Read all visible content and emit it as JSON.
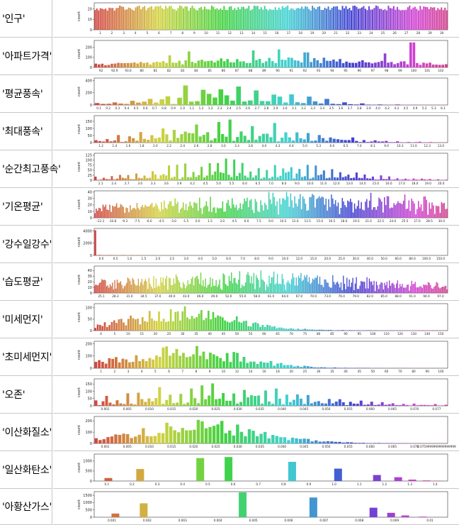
{
  "charts": [
    {
      "label": "'인구'",
      "chart_data": {
        "type": "bar",
        "ylabel": "count",
        "yticks": [
          "0",
          "10",
          "20"
        ],
        "ymax": 26,
        "xticklabels": [
          "1",
          "2",
          "3",
          "4",
          "5",
          "6",
          "7",
          "8",
          "9",
          "10",
          "11",
          "12",
          "13",
          "14",
          "15",
          "16",
          "17",
          "18",
          "19",
          "20",
          "21",
          "22",
          "23",
          "24",
          "25",
          "26",
          "27",
          "28",
          "29",
          "30"
        ],
        "pattern": "uniform",
        "nbars": 200,
        "base": 20,
        "jitter": 5
      }
    },
    {
      "label": "'아파트가격'",
      "chart_data": {
        "type": "bar",
        "ylabel": "count",
        "yticks": [
          "0",
          "100",
          "200"
        ],
        "ymax": 270,
        "xticklabels": [
          "92",
          "92.9",
          "93.6",
          "80",
          "81",
          "82",
          "83",
          "84",
          "85",
          "86",
          "87",
          "88",
          "89",
          "90",
          "91",
          "92",
          "93",
          "94",
          "95",
          "96",
          "97",
          "98",
          "99",
          "100",
          "101",
          "102"
        ],
        "pattern": "wide",
        "nbars": 110,
        "base": 20,
        "peak": 160,
        "mu": 0.5,
        "sigma": 0.3,
        "spikes": [
          [
            0.21,
            120
          ],
          [
            0.27,
            160
          ],
          [
            0.45,
            170
          ],
          [
            0.52,
            180
          ],
          [
            0.6,
            150
          ],
          [
            0.82,
            140
          ],
          [
            0.9,
            250
          ]
        ]
      }
    },
    {
      "label": "'평균풍속'",
      "chart_data": {
        "type": "bar",
        "ylabel": "count",
        "yticks": [
          "0",
          "200",
          "400"
        ],
        "ymax": 440,
        "xticklabels": [
          "0.1",
          "0.2",
          "0.3",
          "0.4",
          "0.5",
          "0.6",
          "0.7",
          "0.8",
          "0.9",
          "1.0",
          "1.1",
          "1.2",
          "1.3",
          "2.3",
          "2.4",
          "2.5",
          "2.6",
          "2.7",
          "2.8",
          "2.9",
          "3.0",
          "3.1",
          "3.2",
          "3.3",
          "3.4",
          "3.5",
          "3.6",
          "3.7",
          "3.8",
          "3.9",
          "4.0",
          "4.2",
          "4.3",
          "4.5",
          "4.9",
          "5.2",
          "5.3",
          "6.1"
        ],
        "pattern": "peaks",
        "nbars": 60,
        "base": 5,
        "peak": 410,
        "mu": 0.38,
        "sigma": 0.17,
        "alt": true
      }
    },
    {
      "label": "'최대풍속'",
      "chart_data": {
        "type": "bar",
        "ylabel": "count",
        "yticks": [
          "0",
          "50",
          "100",
          "150"
        ],
        "ymax": 190,
        "xticklabels": [
          "1.2",
          "1.4",
          "1.6",
          "1.8",
          "2.0",
          "2.2",
          "2.4",
          "2.6",
          "2.8",
          "3.0",
          "3.3",
          "3.6",
          "4.0",
          "4.3",
          "4.6",
          "5.0",
          "5.3",
          "6.0",
          "6.5",
          "7.0",
          "8.1",
          "9.0",
          "10.3",
          "11.0",
          "12.3",
          "13.0"
        ],
        "pattern": "peaks",
        "nbars": 95,
        "base": 5,
        "peak": 170,
        "mu": 0.38,
        "sigma": 0.2,
        "alt": true
      }
    },
    {
      "label": "'순간최고풍속'",
      "chart_data": {
        "type": "bar",
        "ylabel": "count",
        "yticks": [
          "0",
          "25",
          "50",
          "75",
          "100",
          "125"
        ],
        "ymax": 135,
        "xticklabels": [
          "2.1",
          "2.4",
          "2.7",
          "3.0",
          "3.3",
          "3.6",
          "3.9",
          "4.2",
          "4.5",
          "5.0",
          "5.5",
          "6.0",
          "6.5",
          "7.0",
          "8.0",
          "9.0",
          "10.0",
          "11.0",
          "12.0",
          "13.0",
          "14.0",
          "15.0",
          "16.0",
          "17.0",
          "18.0",
          "19.0",
          "20.0"
        ],
        "pattern": "peaks",
        "nbars": 130,
        "base": 3,
        "peak": 115,
        "mu": 0.42,
        "sigma": 0.22,
        "alt": true
      }
    },
    {
      "label": "'기온평균'",
      "chart_data": {
        "type": "bar",
        "ylabel": "count",
        "yticks": [
          "0",
          "10",
          "20",
          "30",
          "40"
        ],
        "ymax": 42,
        "xticklabels": [
          "-12.3",
          "-10.8",
          "-9.3",
          "-7.5",
          "-6.0",
          "-4.5",
          "-3.0",
          "-1.5",
          "0.0",
          "1.5",
          "3.0",
          "4.5",
          "6.0",
          "7.5",
          "9.0",
          "10.5",
          "12.0",
          "13.5",
          "15.0",
          "16.5",
          "18.0",
          "19.5",
          "21.0",
          "22.5",
          "24.0",
          "25.5",
          "27.0",
          "28.5",
          "30.0"
        ],
        "pattern": "noisy",
        "nbars": 260,
        "base": 10,
        "peak": 25,
        "mu": 0.6,
        "sigma": 0.4
      }
    },
    {
      "label": "'강수일강수'",
      "chart_data": {
        "type": "bar",
        "ylabel": "count",
        "yticks": [
          "0",
          "2000",
          "4000"
        ],
        "ymax": 4400,
        "xticklabels": [
          "0.0",
          "0.5",
          "1.0",
          "1.5",
          "2.0",
          "2.5",
          "3.0",
          "4.0",
          "5.0",
          "6.0",
          "7.0",
          "8.0",
          "9.0",
          "10.0",
          "12.0",
          "15.0",
          "20.0",
          "25.0",
          "30.0",
          "40.0",
          "50.0",
          "60.0",
          "80.0",
          "100.0",
          "150.0"
        ],
        "pattern": "single",
        "nbars": 160,
        "first": 4100,
        "base": 30
      }
    },
    {
      "label": "'습도평균'",
      "chart_data": {
        "type": "bar",
        "ylabel": "count",
        "yticks": [
          "0",
          "10",
          "20",
          "30",
          "40"
        ],
        "ymax": 48,
        "xticklabels": [
          "25.1",
          "28.3",
          "31.0",
          "34.5",
          "37.0",
          "40.0",
          "43.0",
          "46.0",
          "49.0",
          "52.0",
          "55.0",
          "58.0",
          "61.0",
          "64.0",
          "67.0",
          "70.0",
          "73.0",
          "76.0",
          "79.0",
          "82.0",
          "85.0",
          "88.0",
          "91.0",
          "94.0",
          "97.0"
        ],
        "pattern": "noisy",
        "nbars": 300,
        "base": 8,
        "peak": 26,
        "mu": 0.45,
        "sigma": 0.35
      }
    },
    {
      "label": "'미세먼지'",
      "chart_data": {
        "type": "bar",
        "ylabel": "count",
        "yticks": [
          "0",
          "50",
          "100"
        ],
        "ymax": 118,
        "xticklabels": [
          "0",
          "5",
          "10",
          "15",
          "20",
          "25",
          "30",
          "35",
          "40",
          "45",
          "50",
          "55",
          "60",
          "65",
          "70",
          "75",
          "80",
          "85",
          "90",
          "95",
          "100",
          "110",
          "120",
          "130",
          "140",
          "150"
        ],
        "pattern": "skew",
        "nbars": 150,
        "base": 2,
        "peak": 105,
        "mu": 0.25,
        "sigma": 0.15
      }
    },
    {
      "label": "'초미세먼지'",
      "chart_data": {
        "type": "bar",
        "ylabel": "count",
        "yticks": [
          "0",
          "100",
          "200"
        ],
        "ymax": 220,
        "xticklabels": [
          "1",
          "2",
          "3",
          "4",
          "5",
          "6",
          "7",
          "8",
          "9",
          "10",
          "12",
          "14",
          "16",
          "18",
          "20",
          "25",
          "30",
          "35",
          "40",
          "45",
          "50",
          "60",
          "70",
          "80",
          "90",
          "100"
        ],
        "pattern": "skew",
        "nbars": 105,
        "base": 2,
        "peak": 200,
        "mu": 0.25,
        "sigma": 0.16
      }
    },
    {
      "label": "'오존'",
      "chart_data": {
        "type": "bar",
        "ylabel": "count",
        "yticks": [
          "0",
          "50",
          "100",
          "150"
        ],
        "ymax": 185,
        "xticklabels": [
          "0.001",
          "0.005",
          "0.010",
          "0.015",
          "0.020",
          "0.025",
          "0.030",
          "0.035",
          "0.040",
          "0.045",
          "0.050",
          "0.055",
          "0.060",
          "0.065",
          "0.070",
          "0.077"
        ],
        "pattern": "peaks",
        "nbars": 100,
        "base": 5,
        "peak": 160,
        "mu": 0.35,
        "sigma": 0.25,
        "alt": true
      }
    },
    {
      "label": "'이산화질소'",
      "chart_data": {
        "type": "bar",
        "ylabel": "count",
        "yticks": [
          "0",
          "100",
          "200"
        ],
        "ymax": 240,
        "xticklabels": [
          "0.001",
          "0.005",
          "0.010",
          "0.015",
          "0.020",
          "0.025",
          "0.030",
          "0.035",
          "0.040",
          "0.045",
          "0.050",
          "0.055",
          "0.060",
          "0.065",
          "0.070",
          "0.0759999999999999999"
        ],
        "pattern": "skew",
        "nbars": 90,
        "base": 3,
        "peak": 215,
        "mu": 0.3,
        "sigma": 0.17
      }
    },
    {
      "label": "'일산화탄소'",
      "chart_data": {
        "type": "bar",
        "ylabel": "count",
        "yticks": [
          "0",
          "500",
          "1000"
        ],
        "ymax": 1350,
        "xticklabels": [
          "0.1",
          "0.2",
          "0.3",
          "0.4",
          "0.5",
          "0.6",
          "0.7",
          "0.8",
          "0.9",
          "1.0",
          "1.1",
          "1.2",
          "1.3",
          "1.4"
        ],
        "pattern": "manual",
        "bars": [
          [
            0.04,
            150
          ],
          [
            0.13,
            600
          ],
          [
            0.3,
            1150
          ],
          [
            0.38,
            1200
          ],
          [
            0.56,
            960
          ],
          [
            0.69,
            620
          ],
          [
            0.8,
            300
          ],
          [
            0.86,
            190
          ],
          [
            0.9,
            70
          ],
          [
            0.94,
            30
          ],
          [
            0.97,
            15
          ]
        ]
      }
    },
    {
      "label": "'아황산가스'",
      "chart_data": {
        "type": "bar",
        "ylabel": "count",
        "yticks": [
          "0",
          "500",
          "1000",
          "1500"
        ],
        "ymax": 1750,
        "xticklabels": [
          "0.001",
          "0.002",
          "0.003",
          "0.004",
          "0.005",
          "0.006",
          "0.007",
          "0.008",
          "0.009",
          "0.01"
        ],
        "pattern": "manual",
        "bars": [
          [
            0.06,
            250
          ],
          [
            0.14,
            950
          ],
          [
            0.42,
            1700
          ],
          [
            0.62,
            1350
          ],
          [
            0.79,
            650
          ],
          [
            0.84,
            300
          ],
          [
            0.88,
            120
          ],
          [
            0.93,
            40
          ]
        ]
      }
    }
  ]
}
